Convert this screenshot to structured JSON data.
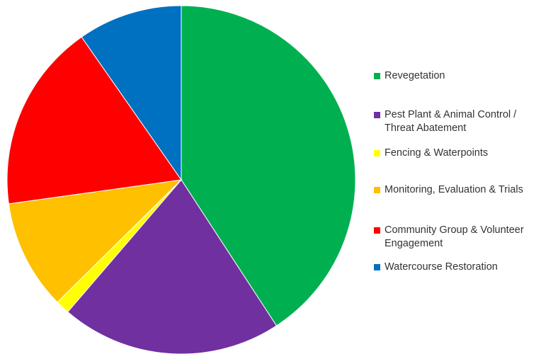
{
  "chart_data": {
    "type": "pie",
    "title": "",
    "start": "top",
    "direction": "clockwise",
    "series": [
      {
        "name": "Revegetation",
        "value": 40.8,
        "color": "#00B050"
      },
      {
        "name": "Pest Plant & Animal Control /\nThreat Abatement",
        "value": 20.5,
        "color": "#7030A0"
      },
      {
        "name": "Fencing & Waterpoints",
        "value": 1.3,
        "color": "#FFFF00"
      },
      {
        "name": "Monitoring, Evaluation & Trials",
        "value": 10.2,
        "color": "#FFC000"
      },
      {
        "name": "Community Group & Volunteer\nEngagement",
        "value": 17.5,
        "color": "#FF0000"
      },
      {
        "name": "Watercourse Restoration",
        "value": 9.7,
        "color": "#0070C0"
      }
    ],
    "legend_position": "right"
  }
}
